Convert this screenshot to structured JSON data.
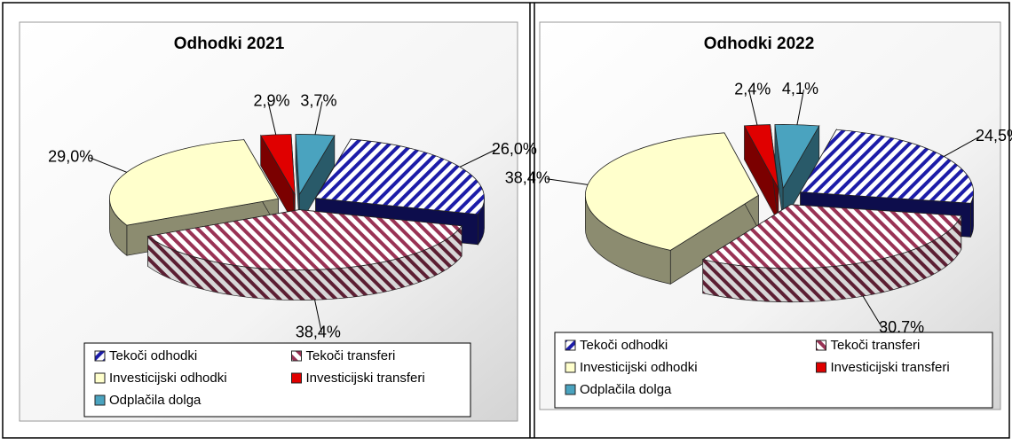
{
  "chart_data": [
    {
      "type": "pie",
      "title": "Odhodki 2021",
      "categories": [
        "Tekoči odhodki",
        "Tekoči transferi",
        "Investicijski odhodki",
        "Investicijski transferi",
        "Odplačila dolga"
      ],
      "values": [
        26.0,
        38.4,
        29.0,
        2.9,
        3.7
      ],
      "value_labels": [
        "26,0%",
        "38,4%",
        "29,0%",
        "2,9%",
        "3,7%"
      ],
      "colors": [
        "#1c1ca8",
        "#993355",
        "#ffffcc",
        "#e00000",
        "#4aa3bf"
      ],
      "hatched": [
        true,
        true,
        false,
        false,
        false
      ]
    },
    {
      "type": "pie",
      "title": "Odhodki 2022",
      "categories": [
        "Tekoči odhodki",
        "Tekoči transferi",
        "Investicijski odhodki",
        "Investicijski transferi",
        "Odplačila dolga"
      ],
      "values": [
        24.5,
        30.7,
        38.4,
        2.4,
        4.1
      ],
      "value_labels": [
        "24,5%",
        "30,7%",
        "38,4%",
        "2,4%",
        "4,1%"
      ],
      "colors": [
        "#1c1ca8",
        "#993355",
        "#ffffcc",
        "#e00000",
        "#4aa3bf"
      ],
      "hatched": [
        true,
        true,
        false,
        false,
        false
      ]
    }
  ]
}
